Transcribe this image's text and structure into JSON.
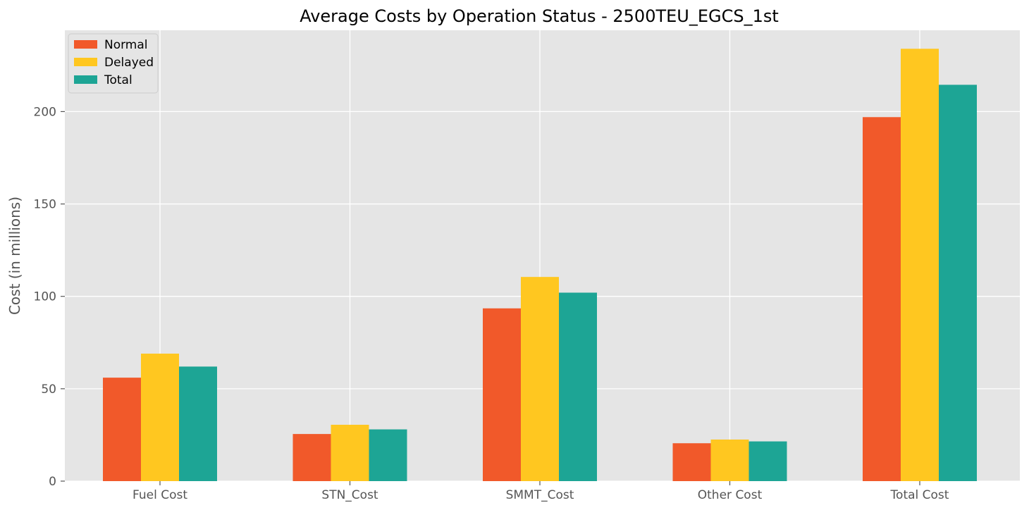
{
  "chart_data": {
    "type": "bar",
    "title": "Average Costs by Operation Status - 2500TEU_EGCS_1st",
    "xlabel": "",
    "ylabel": "Cost (in millions)",
    "ylim": [
      0,
      244
    ],
    "yticks": [
      0,
      50,
      100,
      150,
      200
    ],
    "categories": [
      "Fuel Cost",
      "STN_Cost",
      "SMMT_Cost",
      "Other Cost",
      "Total Cost"
    ],
    "series": [
      {
        "name": "Normal",
        "color": "#F1592A",
        "values": [
          56,
          25.5,
          93.5,
          20.5,
          197
        ]
      },
      {
        "name": "Delayed",
        "color": "#FFC720",
        "values": [
          69,
          30.5,
          110.5,
          22.5,
          234
        ]
      },
      {
        "name": "Total",
        "color": "#1DA595",
        "values": [
          62,
          28,
          102,
          21.5,
          214.5
        ]
      }
    ],
    "grid": true,
    "legend_position": "top-left",
    "background_color": "#E5E5E5",
    "grid_color": "#FFFFFF"
  }
}
